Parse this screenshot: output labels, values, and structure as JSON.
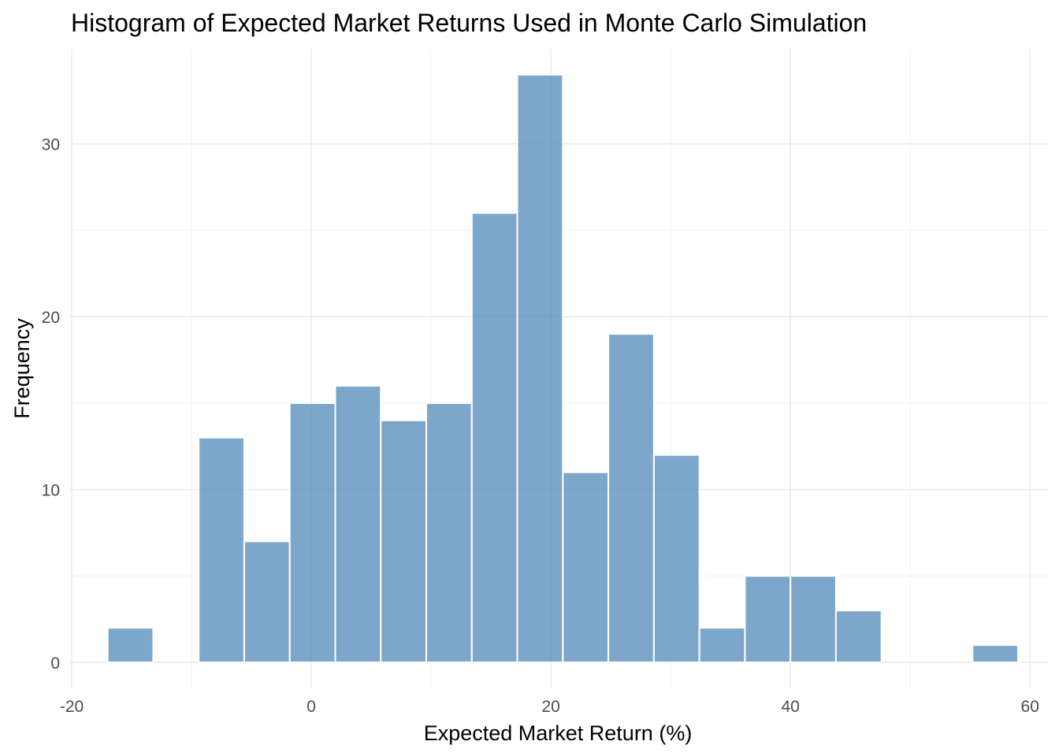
{
  "chart_data": {
    "type": "bar",
    "subtype": "histogram",
    "title": "Histogram of Expected Market Returns Used in Monte Carlo Simulation",
    "xlabel": "Expected Market Return (%)",
    "ylabel": "Frequency",
    "xlim": [
      -20.2,
      61.5
    ],
    "ylim": [
      -1.5,
      35.5
    ],
    "x_ticks": [
      -20,
      0,
      20,
      40,
      60
    ],
    "x_tick_labels": [
      "-20",
      "0",
      "20",
      "40",
      "60"
    ],
    "y_ticks": [
      0,
      10,
      20,
      30
    ],
    "y_tick_labels": [
      "0",
      "10",
      "20",
      "30"
    ],
    "x_minor_ticks": [
      -10,
      10,
      30,
      50
    ],
    "y_minor_ticks": [
      5,
      15,
      25
    ],
    "grid": true,
    "bar_color": "#4682b4",
    "bar_opacity": 0.7,
    "bar_edge_color": "#ffffff",
    "bins": [
      {
        "x0": -17.0,
        "x1": -13.2,
        "count": 2
      },
      {
        "x0": -9.4,
        "x1": -5.6,
        "count": 13
      },
      {
        "x0": -5.6,
        "x1": -1.8,
        "count": 7
      },
      {
        "x0": -1.8,
        "x1": 2.0,
        "count": 15
      },
      {
        "x0": 2.0,
        "x1": 5.8,
        "count": 16
      },
      {
        "x0": 5.8,
        "x1": 9.6,
        "count": 14
      },
      {
        "x0": 9.6,
        "x1": 13.4,
        "count": 15
      },
      {
        "x0": 13.4,
        "x1": 17.2,
        "count": 26
      },
      {
        "x0": 17.2,
        "x1": 21.0,
        "count": 34
      },
      {
        "x0": 21.0,
        "x1": 24.8,
        "count": 11
      },
      {
        "x0": 24.8,
        "x1": 28.6,
        "count": 19
      },
      {
        "x0": 28.6,
        "x1": 32.4,
        "count": 12
      },
      {
        "x0": 32.4,
        "x1": 36.2,
        "count": 2
      },
      {
        "x0": 36.2,
        "x1": 40.0,
        "count": 5
      },
      {
        "x0": 40.0,
        "x1": 43.8,
        "count": 5
      },
      {
        "x0": 43.8,
        "x1": 47.6,
        "count": 3
      },
      {
        "x0": 55.2,
        "x1": 59.0,
        "count": 1
      }
    ]
  }
}
